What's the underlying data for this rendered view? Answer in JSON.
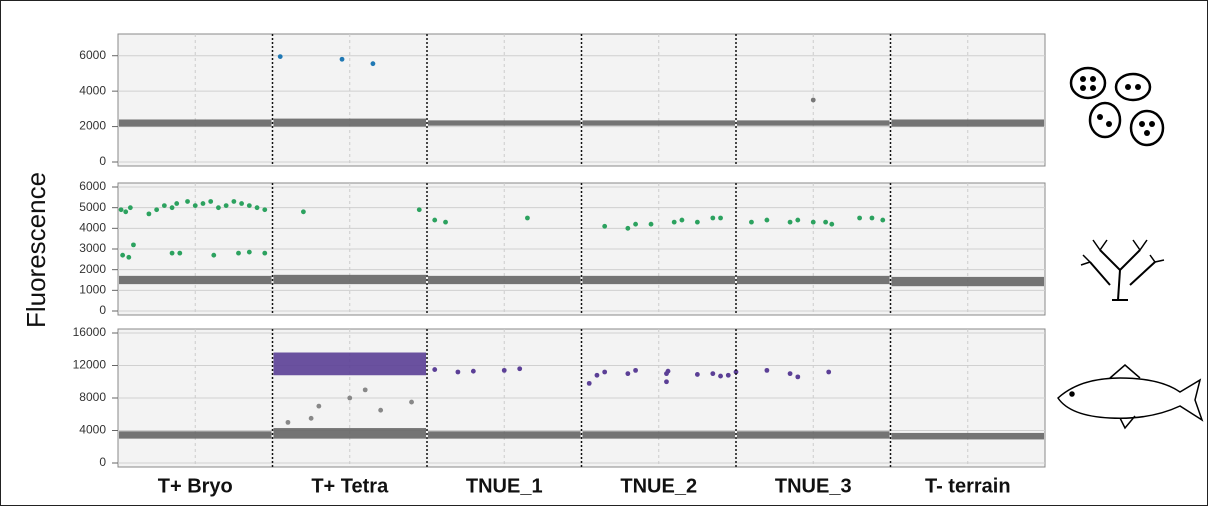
{
  "chart_data": [
    {
      "type": "scatter",
      "ylabel": "Fluorescence",
      "xlim": [
        0,
        6
      ],
      "ylim": [
        0,
        7000
      ],
      "yticks": [
        0,
        2000,
        4000,
        6000
      ],
      "grid": true,
      "bands": [
        {
          "color": "#666666",
          "low": [
            2000,
            2000,
            2050,
            2050,
            2050,
            2000
          ],
          "high": [
            2400,
            2450,
            2350,
            2350,
            2350,
            2400
          ]
        }
      ],
      "series": [
        {
          "color": "#1f78b4",
          "x": [
            1.05,
            1.45,
            1.65
          ],
          "values": [
            5950,
            5800,
            5550
          ]
        },
        {
          "color": "#777777",
          "x": [
            4.5
          ],
          "values": [
            3500
          ]
        }
      ]
    },
    {
      "type": "scatter",
      "xlim": [
        0,
        6
      ],
      "ylim": [
        0,
        6000
      ],
      "yticks": [
        0,
        1000,
        2000,
        3000,
        4000,
        5000,
        6000
      ],
      "grid": true,
      "bands": [
        {
          "color": "#666666",
          "low": [
            1300,
            1300,
            1300,
            1300,
            1300,
            1200
          ],
          "high": [
            1700,
            1750,
            1700,
            1700,
            1700,
            1650
          ]
        }
      ],
      "series": [
        {
          "color": "#2ca25f",
          "x": [
            0.02,
            0.05,
            0.08,
            0.2,
            0.25,
            0.3,
            0.35,
            0.38,
            0.45,
            0.5,
            0.55,
            0.6,
            0.65,
            0.7,
            0.75,
            0.8,
            0.85,
            0.9,
            0.95,
            0.03,
            0.07,
            0.1,
            0.35,
            0.4,
            0.62,
            0.78,
            0.85,
            0.95,
            1.2,
            1.95,
            2.05,
            2.12,
            2.65,
            3.15,
            3.3,
            3.35,
            3.45,
            3.6,
            3.65,
            3.75,
            3.85,
            3.9,
            4.1,
            4.2,
            4.35,
            4.4,
            4.5,
            4.58,
            4.62,
            4.8,
            4.88,
            4.95
          ],
          "values": [
            4900,
            4800,
            5000,
            4700,
            4900,
            5100,
            5000,
            5200,
            5300,
            5100,
            5200,
            5300,
            5000,
            5100,
            5300,
            5200,
            5100,
            5000,
            4900,
            2700,
            2600,
            3200,
            2800,
            2800,
            2700,
            2800,
            2850,
            2800,
            4800,
            4900,
            4400,
            4300,
            4500,
            4100,
            4000,
            4200,
            4200,
            4300,
            4400,
            4300,
            4500,
            4500,
            4300,
            4400,
            4300,
            4400,
            4300,
            4300,
            4200,
            4500,
            4500,
            4400
          ]
        }
      ]
    },
    {
      "type": "scatter",
      "xlim": [
        0,
        6
      ],
      "ylim": [
        0,
        16000
      ],
      "yticks": [
        0,
        4000,
        8000,
        12000,
        16000
      ],
      "grid": true,
      "categories": [
        "T+ Bryo",
        "T+ Tetra",
        "TNUE_1",
        "TNUE_2",
        "TNUE_3",
        "T- terrain"
      ],
      "bands": [
        {
          "color": "#666666",
          "low": [
            3000,
            3000,
            3000,
            3000,
            3000,
            2900
          ],
          "high": [
            3900,
            4300,
            3900,
            3900,
            3900,
            3700
          ]
        },
        {
          "color": "#5b3f96",
          "low": [
            null,
            10800,
            null,
            null,
            null,
            null
          ],
          "high": [
            null,
            13600,
            null,
            null,
            null,
            null
          ]
        }
      ],
      "series": [
        {
          "color": "#888888",
          "x": [
            1.1,
            1.3,
            1.5,
            1.7,
            1.9,
            1.25,
            1.6
          ],
          "values": [
            5000,
            7000,
            8000,
            6500,
            7500,
            5500,
            9000
          ]
        },
        {
          "color": "#5b3f96",
          "x": [
            2.05,
            2.2,
            2.3,
            2.5,
            2.6,
            3.05,
            3.1,
            3.15,
            3.3,
            3.35,
            3.55,
            3.55,
            3.56,
            3.75,
            3.85,
            3.95,
            4.0,
            3.9,
            4.2,
            4.35,
            4.4,
            4.6
          ],
          "values": [
            11500,
            11200,
            11300,
            11400,
            11600,
            9800,
            10800,
            11200,
            11000,
            11400,
            11000,
            10000,
            11300,
            10900,
            11000,
            10800,
            11200,
            10700,
            11400,
            11000,
            10600,
            11200
          ]
        }
      ]
    }
  ]
}
